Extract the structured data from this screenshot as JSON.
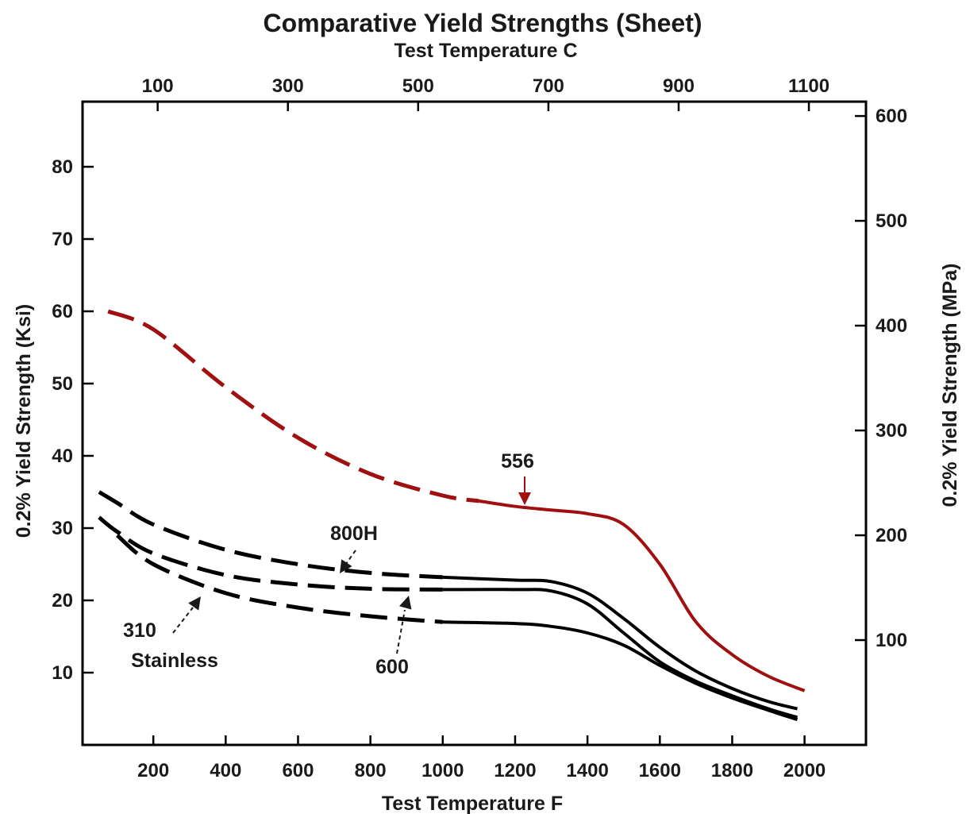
{
  "chart_data": {
    "type": "line",
    "title": "Comparative Yield Strengths (Sheet)",
    "xlabel": "Test Temperature F",
    "x2label": "Test Temperature C",
    "ylabel": "0.2% Yield Strength (Ksi)",
    "y2label": "0.2% Yield Strength  (MPa)",
    "xlim": [
      0,
      2150
    ],
    "ylim": [
      0,
      90
    ],
    "xticks": [
      200,
      400,
      600,
      800,
      1000,
      1200,
      1400,
      1600,
      1800,
      2000
    ],
    "yticks": [
      10,
      20,
      30,
      40,
      50,
      60,
      70,
      80
    ],
    "x2ticks": [
      100,
      300,
      500,
      700,
      900,
      1100
    ],
    "y2ticks": [
      100,
      200,
      300,
      400,
      500,
      600
    ],
    "grid": false,
    "legend": "none",
    "series": [
      {
        "name": "556",
        "color": "#a01010",
        "points": [
          [
            75,
            60.0
          ],
          [
            200,
            57.5
          ],
          [
            400,
            49.5
          ],
          [
            600,
            42.5
          ],
          [
            800,
            37.5
          ],
          [
            1000,
            34.5
          ],
          [
            1200,
            33.0
          ],
          [
            1300,
            32.5
          ],
          [
            1400,
            32.0
          ],
          [
            1500,
            30.5
          ],
          [
            1600,
            25.0
          ],
          [
            1700,
            17.0
          ],
          [
            1800,
            12.5
          ],
          [
            1900,
            9.5
          ],
          [
            2000,
            7.5
          ]
        ],
        "dashed_until": 1100
      },
      {
        "name": "800H",
        "color": "#000000",
        "points": [
          [
            50,
            35.0
          ],
          [
            100,
            33.5
          ],
          [
            200,
            30.5
          ],
          [
            400,
            27.0
          ],
          [
            600,
            25.0
          ],
          [
            800,
            23.8
          ],
          [
            1000,
            23.2
          ],
          [
            1200,
            22.8
          ],
          [
            1300,
            22.6
          ],
          [
            1400,
            21.0
          ],
          [
            1500,
            17.5
          ],
          [
            1600,
            13.5
          ],
          [
            1700,
            10.2
          ],
          [
            1800,
            7.8
          ],
          [
            1900,
            6.0
          ],
          [
            1980,
            5.0
          ]
        ],
        "dashed_until": 1000
      },
      {
        "name": "600",
        "color": "#000000",
        "points": [
          [
            50,
            31.5
          ],
          [
            100,
            29.5
          ],
          [
            200,
            26.5
          ],
          [
            400,
            23.5
          ],
          [
            600,
            22.2
          ],
          [
            800,
            21.6
          ],
          [
            1000,
            21.5
          ],
          [
            1200,
            21.5
          ],
          [
            1300,
            21.3
          ],
          [
            1400,
            19.5
          ],
          [
            1500,
            15.5
          ],
          [
            1600,
            11.5
          ],
          [
            1700,
            8.8
          ],
          [
            1800,
            6.8
          ],
          [
            1900,
            5.0
          ],
          [
            1980,
            3.8
          ]
        ],
        "dashed_until": 1000
      },
      {
        "name": "310 Stainless",
        "color": "#000000",
        "points": [
          [
            100,
            29.0
          ],
          [
            200,
            25.0
          ],
          [
            400,
            21.0
          ],
          [
            600,
            19.0
          ],
          [
            800,
            17.8
          ],
          [
            1000,
            17.0
          ],
          [
            1200,
            16.8
          ],
          [
            1300,
            16.4
          ],
          [
            1400,
            15.5
          ],
          [
            1500,
            13.8
          ],
          [
            1600,
            11.0
          ],
          [
            1700,
            8.5
          ],
          [
            1800,
            6.5
          ],
          [
            1900,
            4.8
          ],
          [
            1980,
            3.5
          ]
        ],
        "dashed_until": 1000
      }
    ],
    "annotations": [
      {
        "text": "556",
        "series": "556",
        "color": "#a01010"
      },
      {
        "text": "800H",
        "series": "800H",
        "color": "#1a1a1a"
      },
      {
        "text": "600",
        "series": "600",
        "color": "#1a1a1a"
      },
      {
        "text": "310",
        "series": "310 Stainless",
        "color": "#1a1a1a"
      },
      {
        "text": "Stainless",
        "series": "310 Stainless",
        "color": "#1a1a1a"
      }
    ]
  }
}
